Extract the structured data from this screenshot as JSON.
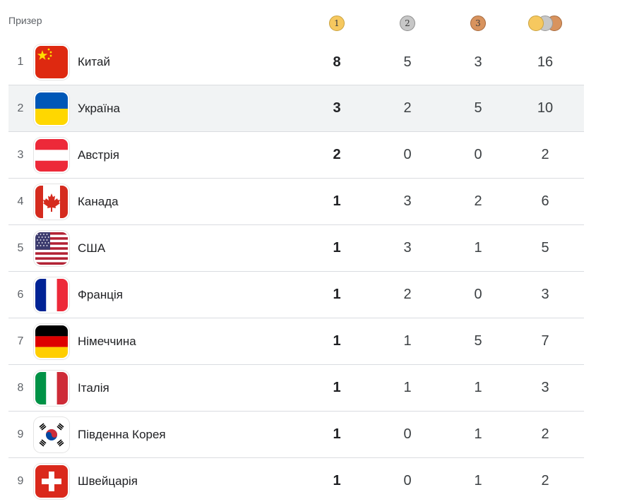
{
  "header": {
    "title": "Призер",
    "gold_digit": "1",
    "silver_digit": "2",
    "bronze_digit": "3"
  },
  "colors": {
    "gold": "#f6c85f",
    "silver": "#c7c7c7",
    "bronze": "#d8935e",
    "highlight_row": "#f1f3f4"
  },
  "rows": [
    {
      "rank": "1",
      "country": "Китай",
      "flag": "china-flag-icon",
      "gold": "8",
      "silver": "5",
      "bronze": "3",
      "total": "16"
    },
    {
      "rank": "2",
      "country": "Україна",
      "flag": "ukraine-flag-icon",
      "gold": "3",
      "silver": "2",
      "bronze": "5",
      "total": "10"
    },
    {
      "rank": "3",
      "country": "Австрія",
      "flag": "austria-flag-icon",
      "gold": "2",
      "silver": "0",
      "bronze": "0",
      "total": "2"
    },
    {
      "rank": "4",
      "country": "Канада",
      "flag": "canada-flag-icon",
      "gold": "1",
      "silver": "3",
      "bronze": "2",
      "total": "6"
    },
    {
      "rank": "5",
      "country": "США",
      "flag": "usa-flag-icon",
      "gold": "1",
      "silver": "3",
      "bronze": "1",
      "total": "5"
    },
    {
      "rank": "6",
      "country": "Франція",
      "flag": "france-flag-icon",
      "gold": "1",
      "silver": "2",
      "bronze": "0",
      "total": "3"
    },
    {
      "rank": "7",
      "country": "Німеччина",
      "flag": "germany-flag-icon",
      "gold": "1",
      "silver": "1",
      "bronze": "5",
      "total": "7"
    },
    {
      "rank": "8",
      "country": "Італія",
      "flag": "italy-flag-icon",
      "gold": "1",
      "silver": "1",
      "bronze": "1",
      "total": "3"
    },
    {
      "rank": "9",
      "country": "Південна Корея",
      "flag": "south-korea-flag-icon",
      "gold": "1",
      "silver": "0",
      "bronze": "1",
      "total": "2"
    },
    {
      "rank": "9",
      "country": "Швейцарія",
      "flag": "switzerland-flag-icon",
      "gold": "1",
      "silver": "0",
      "bronze": "1",
      "total": "2"
    }
  ]
}
